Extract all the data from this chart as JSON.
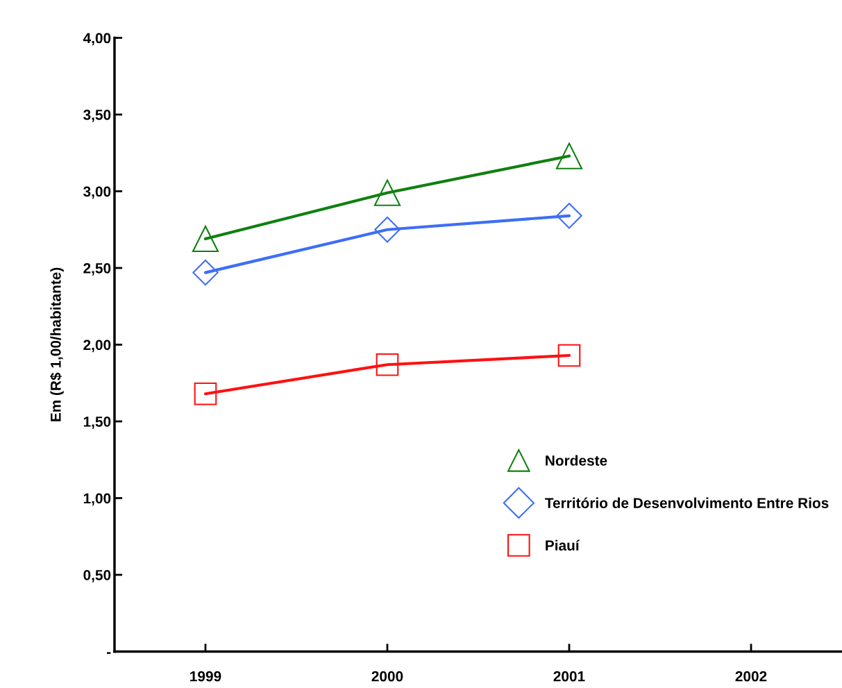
{
  "chart_data": {
    "type": "line",
    "ylabel": "Em (R$ 1,00/habitante)",
    "categories": [
      "1999",
      "2000",
      "2001",
      "2002"
    ],
    "series": [
      {
        "name": "Nordeste",
        "color": "#108010",
        "marker": "triangle",
        "values": [
          2.69,
          2.99,
          3.23,
          null
        ]
      },
      {
        "name": "Território de Desenvolvimento Entre Rios",
        "color": "#3d6ef5",
        "marker": "diamond",
        "values": [
          2.47,
          2.75,
          2.84,
          null
        ]
      },
      {
        "name": "Piauí",
        "color": "#ff1010",
        "marker": "square",
        "values": [
          1.68,
          1.87,
          1.93,
          null
        ]
      }
    ],
    "ylim": [
      0,
      4
    ],
    "yticks": [
      {
        "value": 0,
        "label": "-"
      },
      {
        "value": 0.5,
        "label": "0,50"
      },
      {
        "value": 1,
        "label": "1,00"
      },
      {
        "value": 1.5,
        "label": "1,50"
      },
      {
        "value": 2,
        "label": "2,00"
      },
      {
        "value": 2.5,
        "label": "2,50"
      },
      {
        "value": 3,
        "label": "3,00"
      },
      {
        "value": 3.5,
        "label": "3,50"
      },
      {
        "value": 4,
        "label": "4,00"
      }
    ],
    "grid": false,
    "legend": "right",
    "line_style": "solid"
  }
}
